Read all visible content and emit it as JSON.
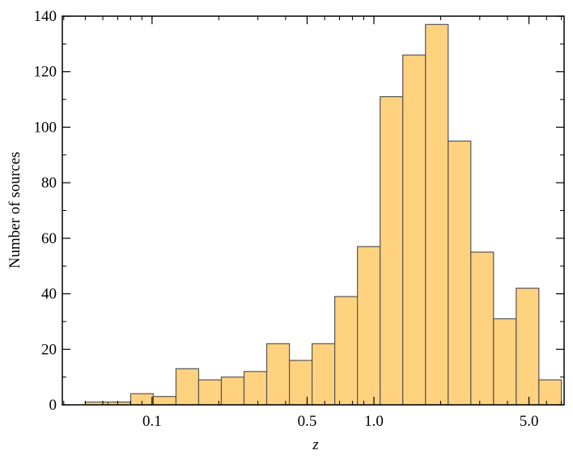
{
  "chart_data": {
    "type": "histogram",
    "xlabel": "z",
    "ylabel": "Number of sources",
    "xscale": "log",
    "bins": [
      0.05,
      0.0633,
      0.0801,
      0.1013,
      0.1282,
      0.1622,
      0.2053,
      0.2598,
      0.3287,
      0.416,
      0.5264,
      0.6661,
      0.8429,
      1.0666,
      1.3497,
      1.708,
      2.1613,
      2.7349,
      3.4608,
      4.3794,
      5.5418,
      7.0
    ],
    "values": [
      1,
      1,
      4,
      3,
      13,
      9,
      10,
      12,
      22,
      16,
      22,
      39,
      57,
      111,
      126,
      137,
      95,
      55,
      31,
      42,
      9
    ],
    "color": "#ffd27f",
    "edgecolor": "#555555",
    "xlim": [
      0.0394,
      7.2
    ],
    "ylim": [
      0,
      140
    ],
    "xticks": [
      0.1,
      0.5,
      {
        "value": 1,
        "label": "1.0"
      },
      {
        "value": 5,
        "label": "5.0"
      }
    ],
    "yticks": [
      0,
      20,
      40,
      60,
      80,
      100,
      120,
      140
    ]
  }
}
